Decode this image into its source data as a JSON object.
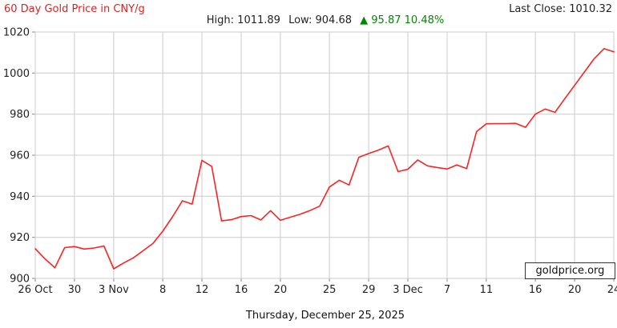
{
  "header": {
    "title": "60 Day Gold Price in CNY/g",
    "high_label": "High:",
    "high_value": "1011.89",
    "low_label": "Low:",
    "low_value": "904.68",
    "change_arrow": "▲",
    "change_value": "95.87",
    "change_percent": "10.48%",
    "last_close_label": "Last Close:",
    "last_close_value": "1010.32"
  },
  "watermark": {
    "text": "goldprice.org"
  },
  "footer": {
    "date": "Thursday, December 25, 2025"
  },
  "colors": {
    "title_red": "#e02020",
    "line_red": "#ff2222",
    "change_green": "#008800",
    "grid": "#cccccc",
    "tick": "#888888",
    "axis_text": "#222222"
  },
  "chart_data": {
    "type": "line",
    "title": "60 Day Gold Price in CNY/g",
    "xlabel": "",
    "ylabel": "CNY per gram",
    "ylim": [
      900,
      1020
    ],
    "yticks": [
      900,
      920,
      940,
      960,
      980,
      1000,
      1020
    ],
    "grid": true,
    "legend": "none",
    "high": 1011.89,
    "low": 904.68,
    "last_close": 1010.32,
    "change": 95.87,
    "change_pct": 10.48,
    "xticks": [
      {
        "label": "26 Oct",
        "index": 0
      },
      {
        "label": "30",
        "index": 4
      },
      {
        "label": "3 Nov",
        "index": 8
      },
      {
        "label": "8",
        "index": 13
      },
      {
        "label": "12",
        "index": 17
      },
      {
        "label": "16",
        "index": 21
      },
      {
        "label": "20",
        "index": 25
      },
      {
        "label": "25",
        "index": 30
      },
      {
        "label": "29",
        "index": 34
      },
      {
        "label": "3 Dec",
        "index": 38
      },
      {
        "label": "7",
        "index": 42
      },
      {
        "label": "11",
        "index": 46
      },
      {
        "label": "16",
        "index": 51
      },
      {
        "label": "20",
        "index": 55
      },
      {
        "label": "24",
        "index": 59
      }
    ],
    "dates": [
      "26 Oct",
      "27 Oct",
      "28 Oct",
      "29 Oct",
      "30 Oct",
      "31 Oct",
      "1 Nov",
      "2 Nov",
      "3 Nov",
      "4 Nov",
      "5 Nov",
      "6 Nov",
      "7 Nov",
      "8 Nov",
      "9 Nov",
      "10 Nov",
      "11 Nov",
      "12 Nov",
      "13 Nov",
      "14 Nov",
      "15 Nov",
      "16 Nov",
      "17 Nov",
      "18 Nov",
      "19 Nov",
      "20 Nov",
      "21 Nov",
      "22 Nov",
      "23 Nov",
      "24 Nov",
      "25 Nov",
      "26 Nov",
      "27 Nov",
      "28 Nov",
      "29 Nov",
      "30 Nov",
      "1 Dec",
      "2 Dec",
      "3 Dec",
      "4 Dec",
      "5 Dec",
      "6 Dec",
      "7 Dec",
      "8 Dec",
      "9 Dec",
      "10 Dec",
      "11 Dec",
      "12 Dec",
      "13 Dec",
      "14 Dec",
      "15 Dec",
      "16 Dec",
      "17 Dec",
      "18 Dec",
      "19 Dec",
      "20 Dec",
      "21 Dec",
      "22 Dec",
      "23 Dec",
      "24 Dec"
    ],
    "values": [
      914.45,
      909.5,
      905.2,
      915.0,
      915.5,
      914.3,
      914.8,
      915.8,
      904.68,
      907.5,
      910.0,
      913.5,
      917.0,
      923.0,
      930.0,
      937.8,
      936.2,
      957.5,
      954.5,
      928.0,
      928.6,
      930.1,
      930.6,
      928.5,
      933.0,
      928.3,
      929.8,
      931.2,
      933.0,
      935.2,
      944.5,
      947.8,
      945.5,
      959.0,
      960.8,
      962.5,
      964.5,
      952.0,
      953.2,
      957.7,
      954.8,
      954.0,
      953.3,
      955.3,
      953.5,
      971.5,
      975.3,
      975.4,
      975.4,
      975.5,
      973.6,
      980.0,
      982.5,
      980.9,
      987.5,
      994.0,
      1000.5,
      1007.0,
      1011.89,
      1010.32
    ]
  }
}
